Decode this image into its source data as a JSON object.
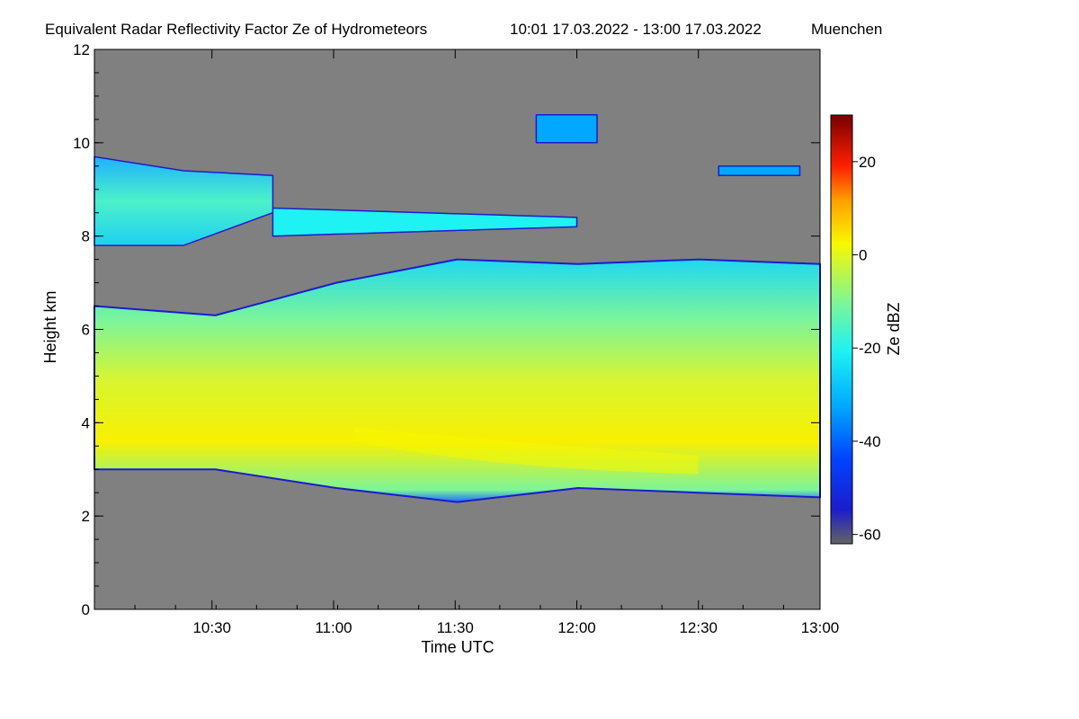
{
  "chart_data": {
    "type": "heatmap",
    "title": "Equivalent Radar Reflectivity Factor Ze of Hydrometeors",
    "time_range": "10:01 17.03.2022 - 13:00 17.03.2022",
    "location": "Muenchen",
    "xlabel": "Time UTC",
    "ylabel": "Height km",
    "colorbar_label": "Ze dBZ",
    "xlim": [
      "10:01",
      "13:00"
    ],
    "ylim": [
      0,
      12
    ],
    "x_ticks": [
      "10:30",
      "11:00",
      "11:30",
      "12:00",
      "12:30",
      "13:00"
    ],
    "y_ticks": [
      "0",
      "2",
      "4",
      "6",
      "8",
      "10",
      "12"
    ],
    "colorbar_range": [
      -62,
      30
    ],
    "colorbar_ticks": [
      "20",
      "0",
      "-20",
      "-40",
      "-60"
    ],
    "background_color": "#808080",
    "colorscale": [
      "#636363",
      "#1c1ccc",
      "#0044ff",
      "#00a8ff",
      "#1ff2f2",
      "#7cf59a",
      "#f8f800",
      "#ffa000",
      "#ff2000",
      "#b00000",
      "#780000"
    ],
    "layers": [
      {
        "name": "main cloud layer",
        "start": "10:01",
        "end": "13:00",
        "base_km": [
          3.0,
          3.0,
          2.6,
          2.3,
          2.6,
          2.5,
          2.4
        ],
        "top_km": [
          6.5,
          6.3,
          7.0,
          7.5,
          7.4,
          7.5,
          7.4
        ],
        "typical_dbz": -10,
        "max_dbz": 0
      },
      {
        "name": "upper cloud layer",
        "start": "10:01",
        "end": "10:45",
        "base_km": [
          7.8,
          7.8,
          8.5
        ],
        "top_km": [
          9.7,
          9.4,
          9.3
        ],
        "typical_dbz": -22
      },
      {
        "name": "thin layer near 8 km",
        "start": "10:45",
        "end": "12:00",
        "base_km": [
          8.0,
          8.2
        ],
        "top_km": [
          8.6,
          8.4
        ],
        "typical_dbz": -30
      },
      {
        "name": "cirrus near 10.5 km",
        "start": "11:50",
        "end": "12:05",
        "base_km": [
          10.0
        ],
        "top_km": [
          10.6
        ],
        "typical_dbz": -40
      },
      {
        "name": "cirrus near 9.5 km",
        "start": "12:35",
        "end": "12:55",
        "base_km": [
          9.3
        ],
        "top_km": [
          9.5
        ],
        "typical_dbz": -40
      }
    ]
  }
}
